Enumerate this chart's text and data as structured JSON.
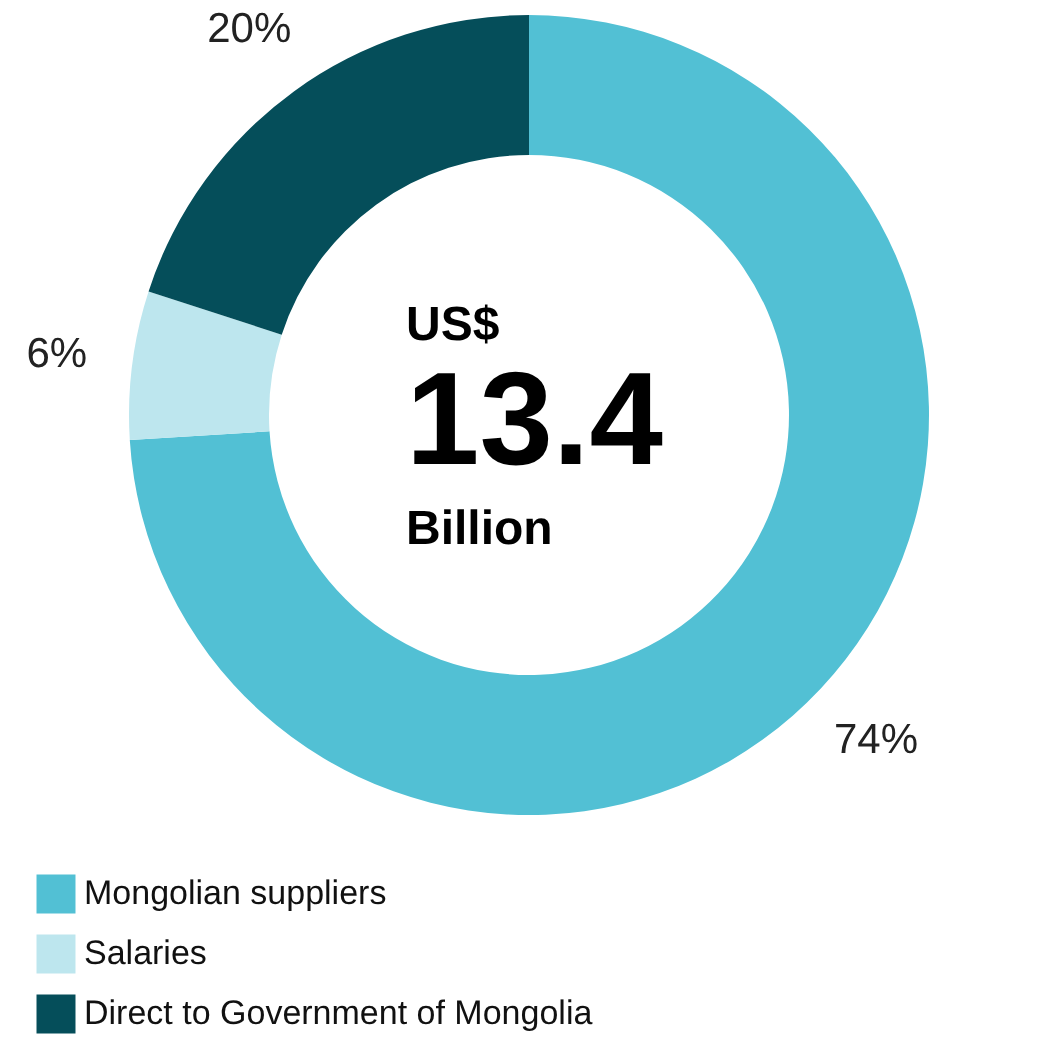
{
  "chart_data": {
    "type": "donut",
    "categories": [
      "Mongolian suppliers",
      "Salaries",
      "Direct to Government of Mongolia"
    ],
    "values": [
      74,
      6,
      20
    ],
    "colors": [
      "#52c0d4",
      "#bde6ee",
      "#054e5a"
    ],
    "value_labels": [
      "74%",
      "6%",
      "20%"
    ],
    "annotations": [
      "US$",
      "13.4",
      "Billion"
    ],
    "legend": "bottom left"
  }
}
